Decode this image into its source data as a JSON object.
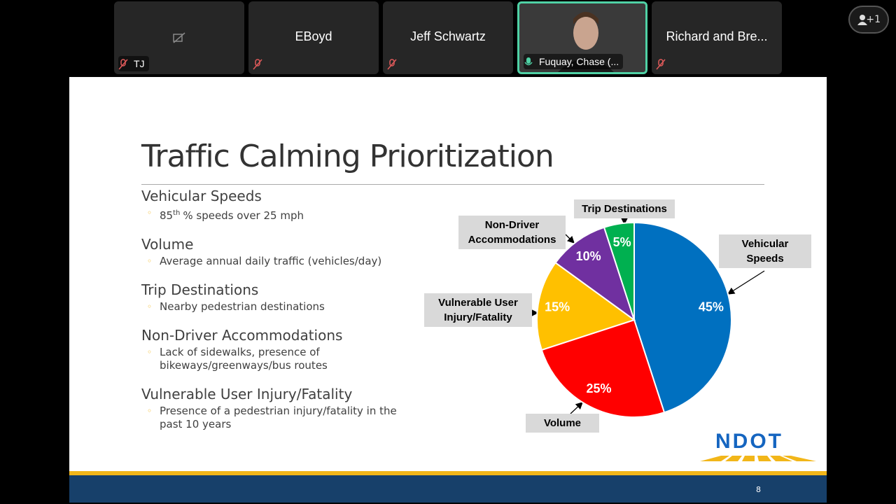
{
  "meeting": {
    "participants": [
      {
        "name": "TJ"
      },
      {
        "name": "EBoyd"
      },
      {
        "name": "Jeff Schwartz"
      },
      {
        "name": "Fuquay, Chase (..."
      },
      {
        "name": "Richard and Bre..."
      }
    ],
    "extra_participants_badge": "+1"
  },
  "slide": {
    "title": "Traffic Calming Prioritization",
    "bullets": [
      {
        "heading": "Vehicular Speeds",
        "detail_prefix": "85",
        "detail_superscript": "th",
        "detail": [
          "% speeds over 25 mph"
        ]
      },
      {
        "heading": "Volume",
        "detail": [
          "Average annual daily traffic (vehicles/day)"
        ]
      },
      {
        "heading": "Trip Destinations",
        "detail": [
          "Nearby pedestrian destinations"
        ]
      },
      {
        "heading": "Non-Driver Accommodations",
        "detail": [
          "Lack of sidewalks, presence of",
          "bikeways/greenways/bus routes"
        ]
      },
      {
        "heading": "Vulnerable User Injury/Fatality",
        "detail": [
          "Presence of a pedestrian injury/fatality in the",
          "past 10 years"
        ]
      }
    ],
    "logo": "NDOT",
    "page_number": "8"
  },
  "chart_data": {
    "type": "pie",
    "categories": [
      "Vehicular Speeds",
      "Volume",
      "Vulnerable User Injury/Fatality",
      "Non-Driver Accommodations",
      "Trip Destinations"
    ],
    "values": [
      45,
      25,
      15,
      10,
      5
    ],
    "value_labels": [
      "45%",
      "25%",
      "15%",
      "10%",
      "5%"
    ],
    "colors": [
      "#0070c0",
      "#ff0000",
      "#ffc000",
      "#7030a0",
      "#00b050"
    ]
  }
}
